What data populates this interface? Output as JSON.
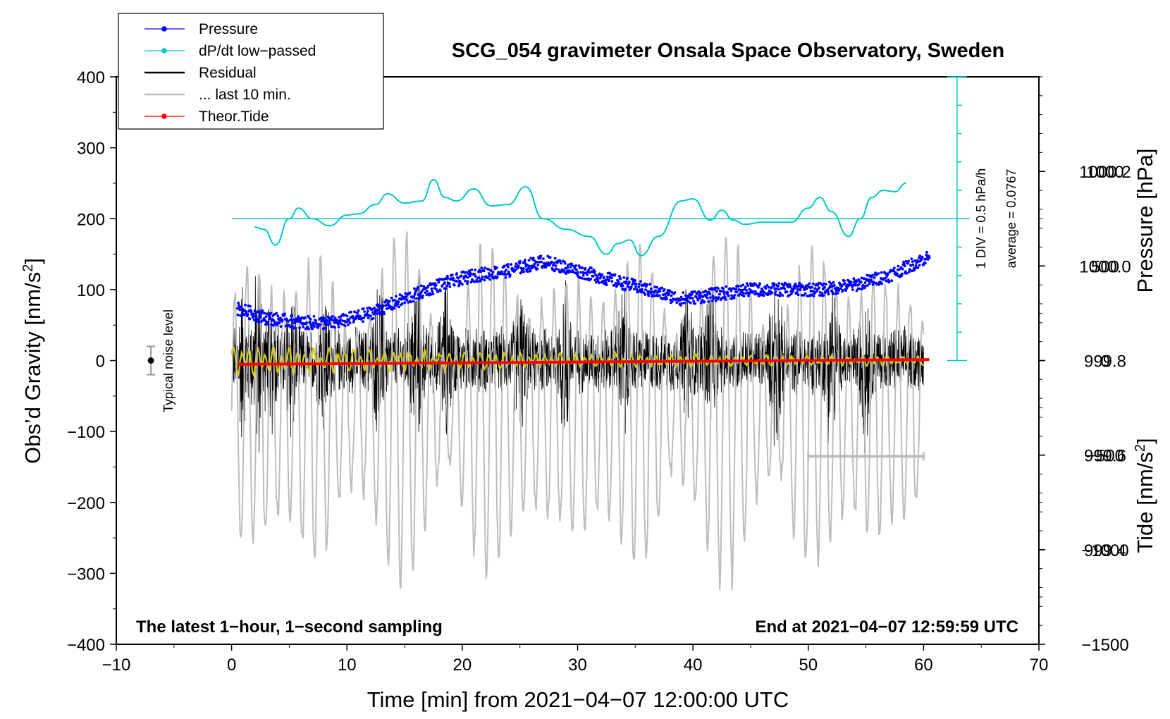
{
  "chart_data": {
    "type": "line",
    "title": "SCG_054 gravimeter Onsala Space Observatory, Sweden",
    "xlabel": "Time [min] from 2021−04−07 12:00:00 UTC",
    "ylabel_left": "Obs’d Gravity [nm/s",
    "ylabel_left_sup": "2",
    "ylabel_left_end": "]",
    "ylabel_right_pressure": "Pressure [hPa]",
    "ylabel_right_tide": "Tide [nm/s",
    "ylabel_right_tide_sup": "2",
    "ylabel_right_tide_end": "]",
    "xlim": [
      -10,
      70
    ],
    "ylim_left": [
      -400,
      400
    ],
    "ylim_pressure": [
      999.2,
      1000.4
    ],
    "ylim_tide": [
      -1500,
      1500
    ],
    "x_ticks": [
      "−10",
      "0",
      "10",
      "20",
      "30",
      "40",
      "50",
      "60",
      "70"
    ],
    "x_tick_values": [
      -10,
      0,
      10,
      20,
      30,
      40,
      50,
      60,
      70
    ],
    "y_left_ticks": [
      "400",
      "300",
      "200",
      "100",
      "0",
      "−100",
      "−200",
      "−300",
      "−400"
    ],
    "y_left_tick_values": [
      400,
      300,
      200,
      100,
      0,
      -100,
      -200,
      -300,
      -400
    ],
    "y_pressure_ticks": [
      "1000.2",
      "1000.0",
      "999.8",
      "999.6",
      "999.4"
    ],
    "y_pressure_tick_values": [
      1000.2,
      1000.0,
      999.8,
      999.6,
      999.4
    ],
    "y_tide_ticks": [
      "1000",
      "500",
      "0",
      "−500",
      "−1000",
      "−1500"
    ],
    "y_tide_tick_values": [
      1000,
      500,
      0,
      -500,
      -1000,
      -1500
    ],
    "legend": [
      {
        "label": "Pressure",
        "color": "#0000ff",
        "marker": true
      },
      {
        "label": "dP/dt low−passed",
        "color": "#00c8c8",
        "marker": true
      },
      {
        "label": "Residual",
        "color": "#000000",
        "marker": false
      },
      {
        "label": "... last 10 min.",
        "color": "#bdbdbd",
        "marker": false
      },
      {
        "label": "Theor.Tide",
        "color": "#ff0000",
        "marker": true
      }
    ],
    "dpdt_scale_label": "1 DIV = 0.5 hPa/h",
    "dpdt_average_label": "average = 0.0767",
    "dpdt_zero_gravity": 200,
    "noise_label": "Typical noise level",
    "noise_bar": {
      "x": -7,
      "center": 0,
      "half_range": 20
    },
    "last10_bar": {
      "x_start": 50,
      "x_end": 60,
      "y_gravity": -135
    },
    "footer_left": "The latest 1−hour, 1−second sampling",
    "footer_right": "End at 2021−04−07 12:59:59 UTC",
    "series": [
      {
        "name": "Pressure",
        "axis": "pressure",
        "x": [
          0.5,
          3,
          6,
          9,
          12,
          15,
          18,
          21,
          24,
          27,
          30,
          33,
          36,
          39,
          42,
          45,
          48,
          51,
          54,
          57,
          60.5
        ],
        "values": [
          999.91,
          999.89,
          999.88,
          999.88,
          999.9,
          999.93,
          999.96,
          999.98,
          999.99,
          1000.01,
          999.99,
          999.97,
          999.95,
          999.93,
          999.94,
          999.95,
          999.95,
          999.95,
          999.96,
          999.98,
          1000.02
        ]
      },
      {
        "name": "dP/dt low−passed",
        "axis": "gravity",
        "x": [
          2,
          2.8,
          3.8,
          5,
          5.8,
          7,
          8.5,
          10,
          11,
          12.5,
          13.5,
          15,
          16.5,
          17.5,
          18.5,
          19.5,
          21,
          22.5,
          24,
          25.5,
          27,
          29,
          31,
          32.5,
          33.5,
          34.5,
          35.5,
          37,
          39,
          40,
          41.5,
          42.5,
          43.5,
          44.5,
          46,
          48.5,
          50,
          51,
          52,
          53.5,
          54.5,
          55.5,
          56.5,
          57.5,
          58.5
        ],
        "values": [
          188,
          185,
          163,
          200,
          215,
          200,
          190,
          205,
          207,
          220,
          235,
          222,
          225,
          255,
          230,
          225,
          242,
          218,
          220,
          245,
          200,
          185,
          175,
          150,
          165,
          170,
          148,
          175,
          225,
          228,
          198,
          212,
          198,
          192,
          195,
          195,
          215,
          230,
          210,
          175,
          200,
          230,
          240,
          238,
          250
        ]
      },
      {
        "name": "Theor.Tide",
        "axis": "tide",
        "x": [
          0.5,
          60.5
        ],
        "values": [
          -20,
          5
        ]
      }
    ]
  }
}
